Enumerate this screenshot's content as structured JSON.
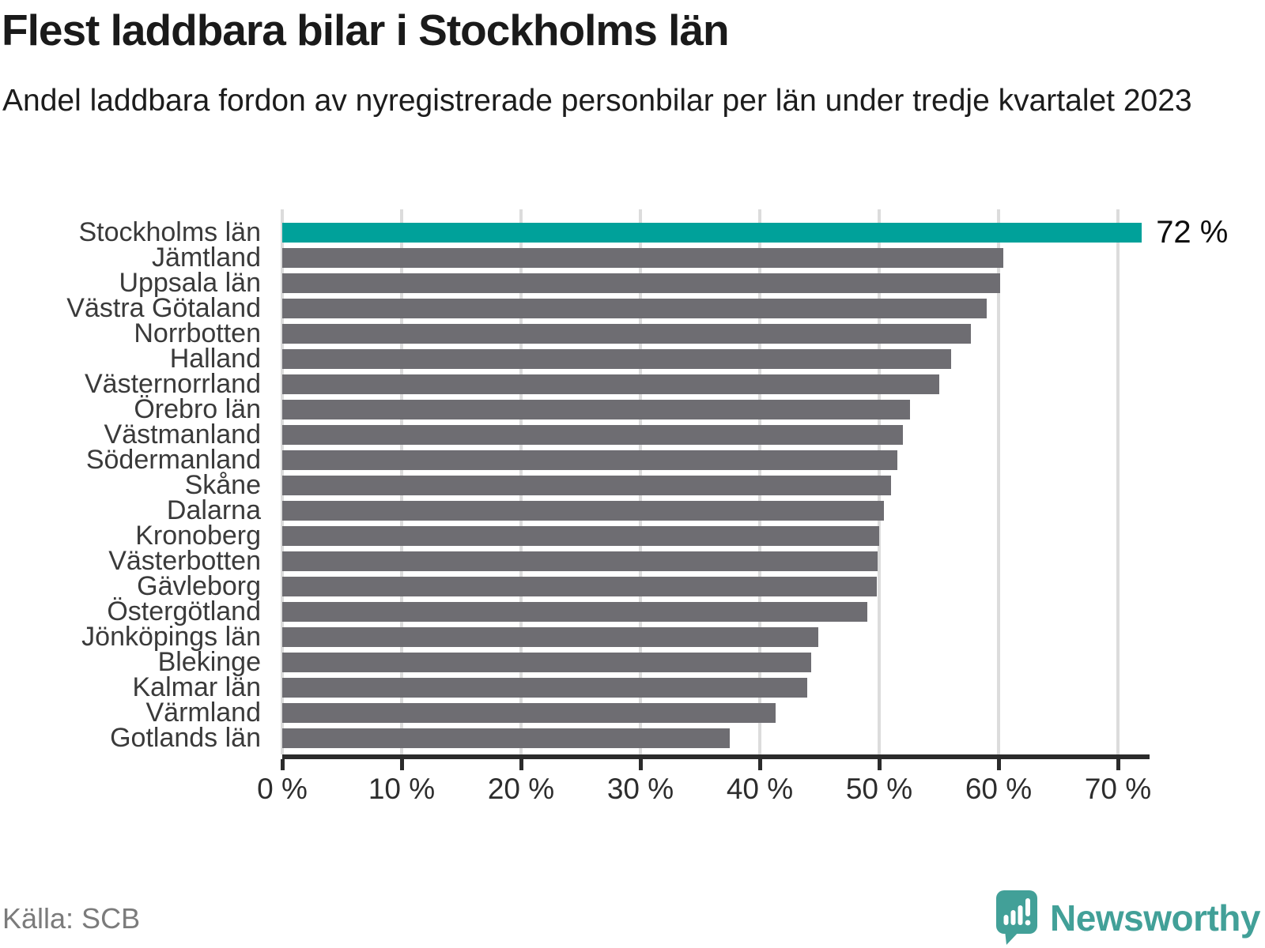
{
  "header": {
    "title": "Flest laddbara bilar i Stockholms län",
    "subtitle": "Andel laddbara fordon av nyregistrerade personbilar per län under tredje kvartalet 2023"
  },
  "chart_data": {
    "type": "bar",
    "orientation": "horizontal",
    "title": "Flest laddbara bilar i Stockholms län",
    "subtitle": "Andel laddbara fordon av nyregistrerade personbilar per län under tredje kvartalet 2023",
    "xlabel": "",
    "ylabel": "",
    "unit": "%",
    "xlim": [
      0,
      72.5
    ],
    "grid": true,
    "legend_position": "none",
    "categories": [
      "Stockholms län",
      "Jämtland",
      "Uppsala län",
      "Västra Götaland",
      "Norrbotten",
      "Halland",
      "Västernorrland",
      "Örebro län",
      "Västmanland",
      "Södermanland",
      "Skåne",
      "Dalarna",
      "Kronoberg",
      "Västerbotten",
      "Gävleborg",
      "Östergötland",
      "Jönköpings län",
      "Blekinge",
      "Kalmar län",
      "Värmland",
      "Gotlands län"
    ],
    "values": [
      72,
      60.4,
      60.1,
      59,
      57.7,
      56,
      55,
      52.6,
      52,
      51.5,
      51,
      50.4,
      50,
      49.9,
      49.8,
      49,
      44.9,
      44.3,
      44,
      41.3,
      37.5
    ],
    "highlight_index": 0,
    "annotated_value_label": "72 %",
    "x_ticks": [
      {
        "value": 0,
        "label": "0 %"
      },
      {
        "value": 10,
        "label": "10 %"
      },
      {
        "value": 20,
        "label": "20 %"
      },
      {
        "value": 30,
        "label": "30 %"
      },
      {
        "value": 40,
        "label": "40 %"
      },
      {
        "value": 50,
        "label": "50 %"
      },
      {
        "value": 60,
        "label": "60 %"
      },
      {
        "value": 70,
        "label": "70 %"
      }
    ]
  },
  "colors": {
    "highlight": "#00a19a",
    "bar": "#6e6d72",
    "gridline": "#dcdcdc",
    "axis": "#2b2b2b",
    "logo": "#42a098"
  },
  "footer": {
    "source": "Källa: SCB",
    "brand_name": "Newsworthy"
  }
}
